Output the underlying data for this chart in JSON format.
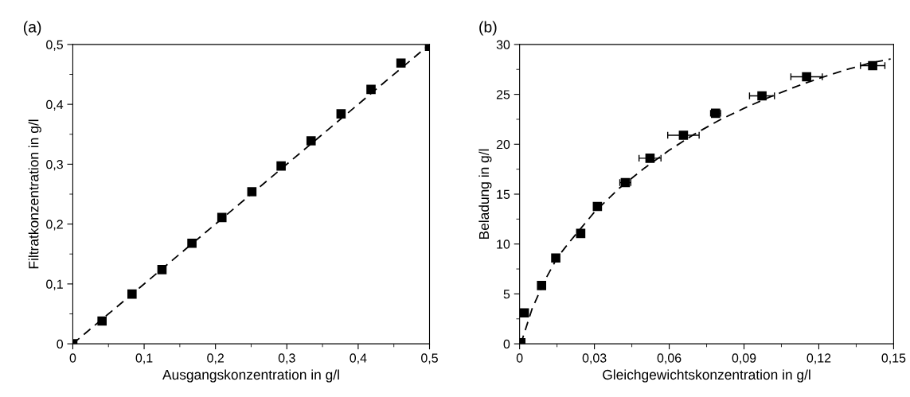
{
  "chart_data": [
    {
      "type": "scatter",
      "title": "(a)",
      "xlabel": "Ausgangskonzentration in g/l",
      "ylabel": "Filtratkonzentration in g/l",
      "xlim": [
        0,
        0.5
      ],
      "ylim": [
        0,
        0.5
      ],
      "xticks": [
        0,
        {
          "value": 0.05,
          "label": null
        },
        {
          "value": 0.1,
          "label": "0,1"
        },
        {
          "value": 0.15,
          "label": null
        },
        {
          "value": 0.2,
          "label": "0,2"
        },
        {
          "value": 0.25,
          "label": null
        },
        {
          "value": 0.3,
          "label": "0,3"
        },
        {
          "value": 0.35,
          "label": null
        },
        {
          "value": 0.4,
          "label": "0,4"
        },
        {
          "value": 0.45,
          "label": null
        },
        {
          "value": 0.5,
          "label": "0,5"
        }
      ],
      "yticks": [
        0,
        {
          "value": 0.05,
          "label": null
        },
        {
          "value": 0.1,
          "label": "0,1"
        },
        {
          "value": 0.15,
          "label": null
        },
        {
          "value": 0.2,
          "label": "0,2"
        },
        {
          "value": 0.25,
          "label": null
        },
        {
          "value": 0.3,
          "label": "0,3"
        },
        {
          "value": 0.35,
          "label": null
        },
        {
          "value": 0.4,
          "label": "0,4"
        },
        {
          "value": 0.45,
          "label": null
        },
        {
          "value": 0.5,
          "label": "0,5"
        }
      ],
      "grid": false,
      "legend": false,
      "series": [
        {
          "type": "line",
          "color": "#000000",
          "line_style": "dashed",
          "marker": "none",
          "x": [
            0,
            0.5
          ],
          "values": [
            0,
            0.5
          ]
        },
        {
          "color": "#000000",
          "marker": "square",
          "x": [
            0,
            0.041,
            0.083,
            0.125,
            0.167,
            0.209,
            0.251,
            0.292,
            0.334,
            0.376,
            0.418,
            0.46,
            0.5
          ],
          "values": [
            0,
            0.038,
            0.083,
            0.124,
            0.168,
            0.211,
            0.254,
            0.297,
            0.339,
            0.384,
            0.425,
            0.469,
            0.497
          ]
        }
      ]
    },
    {
      "type": "scatter",
      "title": "(b)",
      "xlabel": "Gleichgewichtskonzentration in g/l",
      "ylabel": "Beladung in g/l",
      "xlim": [
        0,
        0.15
      ],
      "ylim": [
        0,
        30
      ],
      "xticks": [
        0,
        {
          "value": 0.015,
          "label": null
        },
        {
          "value": 0.03,
          "label": "0,03"
        },
        {
          "value": 0.045,
          "label": null
        },
        {
          "value": 0.06,
          "label": "0,06"
        },
        {
          "value": 0.075,
          "label": null
        },
        {
          "value": 0.09,
          "label": "0,09"
        },
        {
          "value": 0.105,
          "label": null
        },
        {
          "value": 0.12,
          "label": "0,12"
        },
        {
          "value": 0.135,
          "label": null
        },
        {
          "value": 0.15,
          "label": "0,15"
        }
      ],
      "yticks": [
        0,
        {
          "value": 2.5,
          "label": null
        },
        5,
        {
          "value": 7.5,
          "label": null
        },
        10,
        {
          "value": 12.5,
          "label": null
        },
        15,
        {
          "value": 17.5,
          "label": null
        },
        20,
        {
          "value": 22.5,
          "label": null
        },
        25,
        {
          "value": 27.5,
          "label": null
        },
        30
      ],
      "grid": false,
      "legend": false,
      "series": [
        {
          "type": "line",
          "color": "#000000",
          "line_style": "dashed",
          "marker": "none",
          "x": [
            0.0005,
            0.005,
            0.01,
            0.015,
            0.02,
            0.025,
            0.03,
            0.04,
            0.05,
            0.06,
            0.07,
            0.08,
            0.09,
            0.1,
            0.11,
            0.12,
            0.13,
            0.14,
            0.1488
          ],
          "values": [
            0,
            3.5,
            6.3,
            8.6,
            10.2,
            11.7,
            13.2,
            15.6,
            17.6,
            19.4,
            21.0,
            22.4,
            23.6,
            24.7,
            25.7,
            26.6,
            27.4,
            28.1,
            28.55
          ]
        },
        {
          "color": "#000000",
          "marker": "square",
          "x": [
            0.0005,
            0.0019,
            0.0088,
            0.0145,
            0.0245,
            0.0312,
            0.0424,
            0.0523,
            0.0657,
            0.0786,
            0.0972,
            0.1151,
            0.1416
          ],
          "values": [
            0.1,
            3.1,
            5.84,
            8.6,
            11.06,
            13.77,
            16.16,
            18.6,
            20.9,
            23.1,
            24.85,
            26.76,
            27.88
          ],
          "xerrors": [
            null,
            null,
            null,
            null,
            0.001,
            null,
            0.0022,
            0.0044,
            0.0063,
            0.002,
            0.005,
            0.0063,
            0.0049
          ]
        }
      ]
    }
  ]
}
